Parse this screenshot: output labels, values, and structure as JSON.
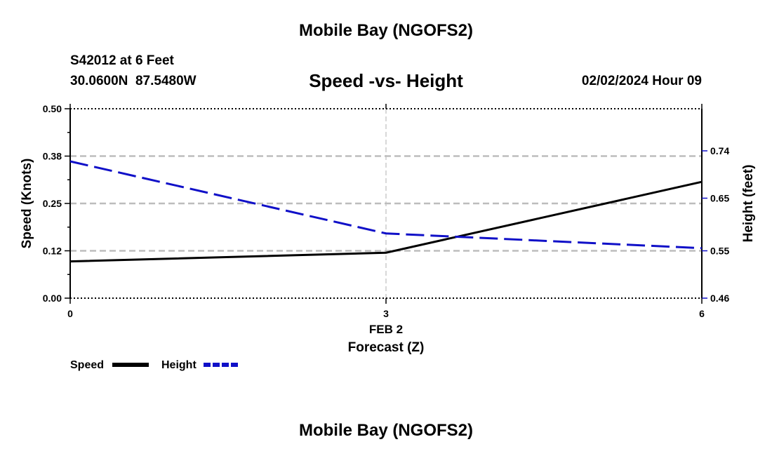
{
  "header": {
    "title": "Mobile Bay (NGOFS2)",
    "station": "S42012 at 6 Feet",
    "coords": "30.0600N  87.5480W",
    "chart_title": "Speed -vs- Height",
    "datetime": "02/02/2024 Hour 09"
  },
  "footer": {
    "title": "Mobile Bay (NGOFS2)"
  },
  "colors": {
    "speed": "#000000",
    "height": "#1010c8",
    "grid": "#bdbdbd"
  },
  "chart_data": {
    "type": "line",
    "title": "Speed -vs- Height",
    "x": [
      0,
      3,
      6
    ],
    "x_tick_labels": [
      "0",
      "3",
      "6"
    ],
    "x_date_label": "FEB 2",
    "xlabel": "Forecast (Z)",
    "xlim": [
      0,
      6
    ],
    "ylabel_left": "Speed (Knots)",
    "ylim_left": [
      0,
      0.5
    ],
    "y_ticks_left": [
      0.0,
      0.125,
      0.25,
      0.375,
      0.5
    ],
    "y_tick_labels_left": [
      "0.00",
      "0.12",
      "0.25",
      "0.38",
      "0.50"
    ],
    "ylabel_right": "Height (feet)",
    "ylim_right": [
      0.46,
      0.82
    ],
    "y_ticks_right": [
      0.46,
      0.55,
      0.65,
      0.74
    ],
    "y_tick_labels_right": [
      "0.46",
      "0.55",
      "0.65",
      "0.74"
    ],
    "series": [
      {
        "name": "Speed",
        "axis": "left",
        "style": "solid",
        "values": [
          0.097,
          0.12,
          0.307
        ]
      },
      {
        "name": "Height",
        "axis": "right",
        "style": "dashed",
        "values": [
          0.72,
          0.583,
          0.555
        ]
      }
    ],
    "legend": [
      "Speed",
      "Height"
    ],
    "legend_position": "bottom-left",
    "grid": true
  }
}
